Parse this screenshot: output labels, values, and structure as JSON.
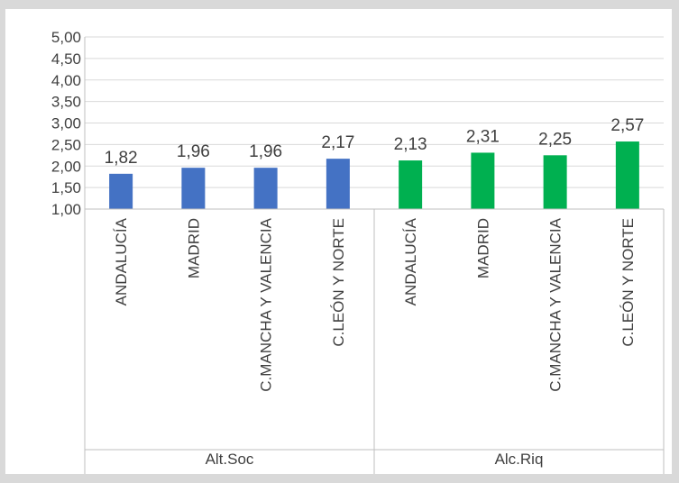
{
  "chart_data": {
    "type": "bar",
    "title": "",
    "xlabel": "",
    "ylabel": "",
    "ylim": [
      1.0,
      5.0
    ],
    "ytick_step": 0.5,
    "yticks": [
      "1,00",
      "1,50",
      "2,00",
      "2,50",
      "3,00",
      "3,50",
      "4,00",
      "4,50",
      "5,00"
    ],
    "grid": true,
    "legend": "none",
    "groups": [
      {
        "name": "Alt.Soc",
        "color": "#4472c4",
        "categories": [
          "ANDALUCÍA",
          "MADRID",
          "C.MANCHA Y VALENCIA",
          "C.LEÓN Y NORTE"
        ],
        "values": [
          1.82,
          1.96,
          1.96,
          2.17
        ],
        "value_labels": [
          "1,82",
          "1,96",
          "1,96",
          "2,17"
        ]
      },
      {
        "name": "Alc.Riq",
        "color": "#00b050",
        "categories": [
          "ANDALUCÍA",
          "MADRID",
          "C.MANCHA Y VALENCIA",
          "C.LEÓN Y NORTE"
        ],
        "values": [
          2.13,
          2.31,
          2.25,
          2.57
        ],
        "value_labels": [
          "2,13",
          "2,31",
          "2,25",
          "2,57"
        ]
      }
    ]
  },
  "colors": {
    "background": "#d9d9d9",
    "plot_background": "#ffffff",
    "grid": "#d9d9d9",
    "axis": "#bfbfbf",
    "text": "#404040"
  }
}
